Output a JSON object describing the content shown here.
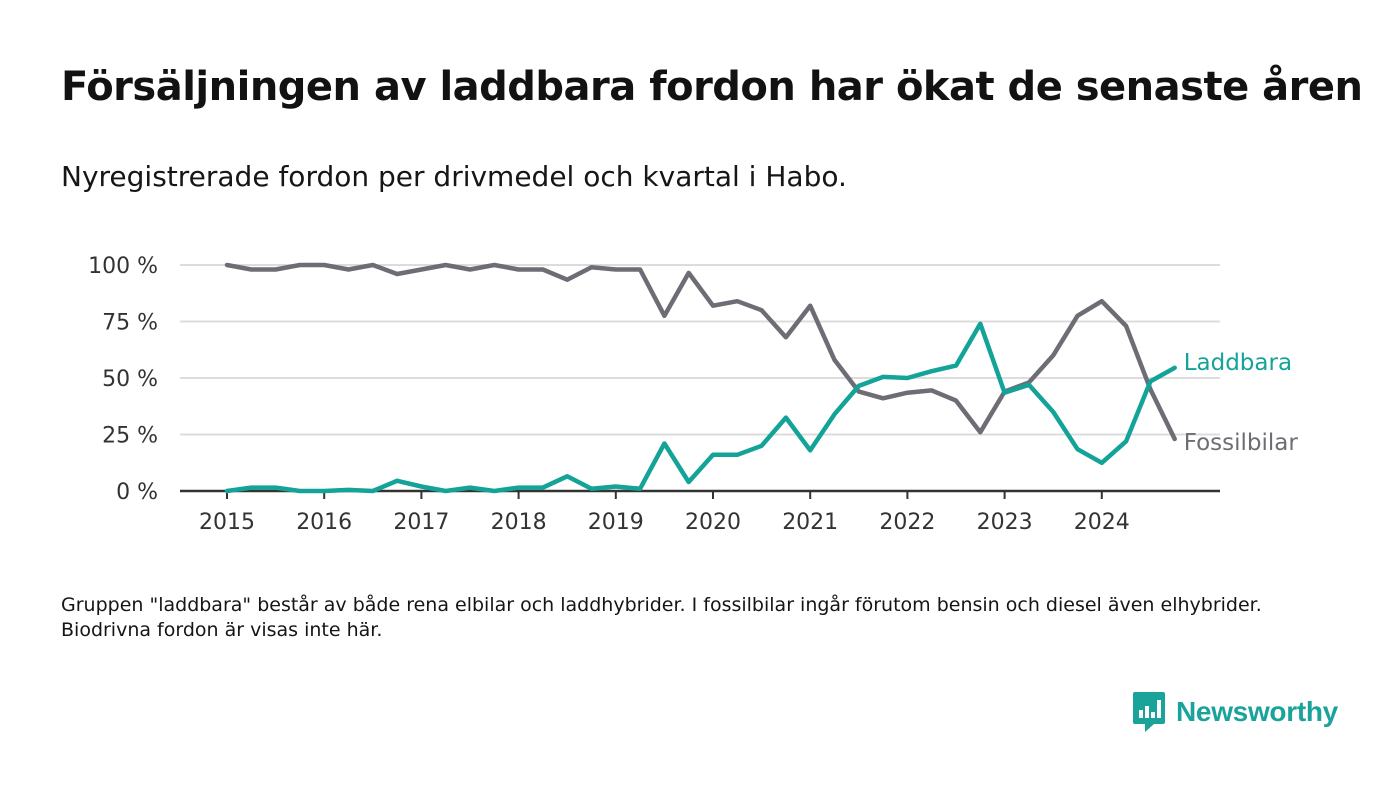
{
  "title": "Försäljningen av laddbara fordon har ökat de senaste åren",
  "subtitle": "Nyregistrerade fordon per drivmedel och kvartal i Habo.",
  "note": "Gruppen \"laddbara\" består av både rena elbilar och laddhybrider. I fossilbilar ingår förutom bensin och diesel även elhybrider. Biodrivna fordon är visas inte här.",
  "brand": {
    "name": "Newsworthy",
    "color": "#1aa39a"
  },
  "chart_data": {
    "type": "line",
    "title": "Försäljningen av laddbara fordon har ökat de senaste åren",
    "xlabel": "",
    "ylabel": "",
    "x_unit": "kvartal",
    "x_start": 2015.0,
    "x_step": 0.25,
    "xlim": [
      2014.75,
      2025.0
    ],
    "x_ticks": [
      2015,
      2016,
      2017,
      2018,
      2019,
      2020,
      2021,
      2022,
      2023,
      2024
    ],
    "x_tick_labels": [
      "2015",
      "2016",
      "2017",
      "2018",
      "2019",
      "2020",
      "2021",
      "2022",
      "2023",
      "2024"
    ],
    "ylim": [
      0,
      100
    ],
    "y_ticks": [
      0,
      25,
      50,
      75,
      100
    ],
    "y_tick_labels": [
      "0 %",
      "25 %",
      "50 %",
      "75 %",
      "100 %"
    ],
    "grid": true,
    "legend": "direct labels at line ends",
    "series": [
      {
        "name": "Fossilbilar",
        "color": "#6e6d75",
        "values": [
          100,
          98,
          98,
          100,
          100,
          98,
          100,
          96,
          98,
          100,
          98,
          100,
          98,
          98,
          93.5,
          99,
          98,
          98,
          77.5,
          96.5,
          82,
          84,
          80,
          68,
          82,
          58,
          44,
          41,
          43.5,
          44.5,
          40,
          26,
          44,
          48,
          60,
          77.5,
          84,
          73,
          45,
          23
        ]
      },
      {
        "name": "Laddbara",
        "color": "#13a398",
        "values": [
          0,
          1.5,
          1.5,
          0,
          0,
          0.5,
          0,
          4.5,
          2,
          0,
          1.5,
          0,
          1.5,
          1.5,
          6.5,
          1,
          2,
          1,
          21,
          4,
          16,
          16,
          20,
          32.5,
          18,
          34,
          46.5,
          50.5,
          50,
          53,
          55.5,
          74,
          43.5,
          47,
          35,
          18.5,
          12.5,
          22,
          48.5,
          54.5
        ]
      }
    ]
  }
}
